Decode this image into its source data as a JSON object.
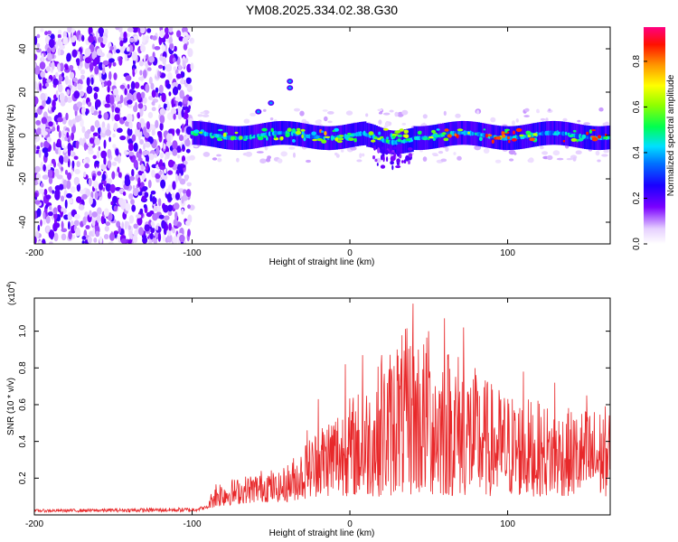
{
  "title": "YM08.2025.334.02.38.G30",
  "chart_data": [
    {
      "type": "heatmap",
      "name": "spectrogram",
      "xlabel": "Height of straight line (km)",
      "ylabel": "Frequency (Hz)",
      "xlim": [
        -200,
        165
      ],
      "ylim": [
        -50,
        50
      ],
      "xticks": [
        -200,
        -100,
        0,
        100
      ],
      "yticks": [
        -40,
        -20,
        0,
        20,
        40
      ],
      "colorbar": {
        "label": "Normalized spectral amplitude",
        "range": [
          0.0,
          0.95
        ],
        "ticks": [
          "0.0",
          "0.2",
          "0.4",
          "0.6",
          "0.8"
        ],
        "tick_values": [
          0.0,
          0.2,
          0.4,
          0.6,
          0.8
        ]
      },
      "noise_region_km": [
        -200,
        -100
      ],
      "signal_band_hz_center": 0,
      "signal_band_hz_halfwidth": 4,
      "spike_features_hz": [
        {
          "x_km": -58,
          "freq_hz": 11
        },
        {
          "x_km": -50,
          "freq_hz": 15
        },
        {
          "x_km": -38,
          "freq_hz": 25
        },
        {
          "x_km": -38,
          "freq_hz": 22
        }
      ]
    },
    {
      "type": "line",
      "name": "snr",
      "xlabel": "Height of straight line (km)",
      "ylabel": "SNR (10 * v/v)",
      "multiplier": "(x10",
      "multiplier_exp": "4",
      "multiplier_close": ")",
      "xlim": [
        -200,
        165
      ],
      "ylim": [
        0,
        1.18
      ],
      "xticks": [
        -200,
        -100,
        0,
        100
      ],
      "yticks": [
        "0.2",
        "0.4",
        "0.6",
        "0.8",
        "1.0"
      ],
      "ytick_values": [
        0.2,
        0.4,
        0.6,
        0.8,
        1.0
      ],
      "color": "#e8282a",
      "envelope": [
        [
          -200,
          0.03
        ],
        [
          -100,
          0.04
        ],
        [
          -90,
          0.05
        ],
        [
          -86,
          0.19
        ],
        [
          -80,
          0.2
        ],
        [
          -72,
          0.2
        ],
        [
          -65,
          0.22
        ],
        [
          -58,
          0.24
        ],
        [
          -52,
          0.27
        ],
        [
          -46,
          0.22
        ],
        [
          -40,
          0.28
        ],
        [
          -30,
          0.38
        ],
        [
          -20,
          0.5
        ],
        [
          -10,
          0.6
        ],
        [
          0,
          0.65
        ],
        [
          10,
          0.72
        ],
        [
          20,
          0.85
        ],
        [
          30,
          0.98
        ],
        [
          40,
          1.05
        ],
        [
          50,
          0.98
        ],
        [
          60,
          0.95
        ],
        [
          70,
          0.9
        ],
        [
          80,
          0.8
        ],
        [
          90,
          0.72
        ],
        [
          100,
          0.68
        ],
        [
          120,
          0.62
        ],
        [
          140,
          0.58
        ],
        [
          165,
          0.6
        ]
      ],
      "base": [
        [
          -200,
          0.015
        ],
        [
          -100,
          0.015
        ],
        [
          -86,
          0.04
        ],
        [
          -70,
          0.06
        ],
        [
          -55,
          0.07
        ],
        [
          -40,
          0.07
        ],
        [
          -20,
          0.1
        ],
        [
          0,
          0.1
        ],
        [
          20,
          0.1
        ],
        [
          40,
          0.1
        ],
        [
          80,
          0.1
        ],
        [
          120,
          0.1
        ],
        [
          165,
          0.1
        ]
      ],
      "peaks": [
        {
          "x": 40,
          "y": 1.15
        },
        {
          "x": 60,
          "y": 1.07
        },
        {
          "x": 72,
          "y": 1.02
        },
        {
          "x": 50,
          "y": 1.0
        },
        {
          "x": 30,
          "y": 0.9
        },
        {
          "x": 20,
          "y": 0.87
        },
        {
          "x": 8,
          "y": 0.87
        },
        {
          "x": -3,
          "y": 0.82
        },
        {
          "x": -20,
          "y": 0.63
        },
        {
          "x": -27,
          "y": 0.46
        },
        {
          "x": 110,
          "y": 0.78
        },
        {
          "x": 130,
          "y": 0.72
        },
        {
          "x": 150,
          "y": 0.65
        }
      ]
    }
  ]
}
